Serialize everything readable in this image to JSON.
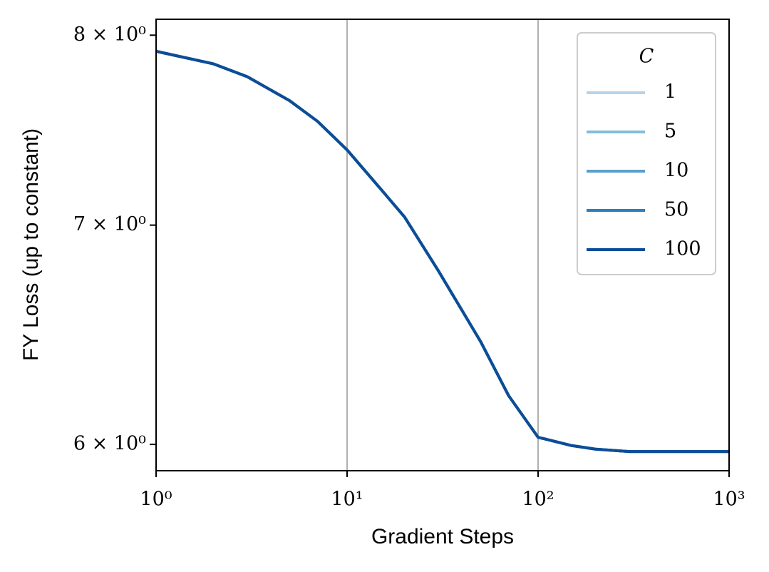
{
  "chart_data": {
    "type": "line",
    "xlabel": "Gradient Steps",
    "ylabel": "FY Loss (up to constant)",
    "xscale": "log",
    "yscale": "log",
    "xlim": [
      1,
      1000
    ],
    "ylim": [
      5.89,
      8.09
    ],
    "xticks": [
      {
        "value": 1,
        "label": "10⁰"
      },
      {
        "value": 10,
        "label": "10¹"
      },
      {
        "value": 100,
        "label": "10²"
      },
      {
        "value": 1000,
        "label": "10³"
      }
    ],
    "yticks": [
      {
        "value": 6,
        "label": "6 × 10⁰"
      },
      {
        "value": 7,
        "label": "7 × 10⁰"
      },
      {
        "value": 8,
        "label": "8 × 10⁰"
      }
    ],
    "grid": "x",
    "legend_title": "C",
    "legend_position": "upper right",
    "x": [
      1,
      2,
      3,
      5,
      7,
      10,
      15,
      20,
      30,
      50,
      70,
      100,
      150,
      200,
      300,
      500,
      1000
    ],
    "series": [
      {
        "name": "1",
        "color": "#b7d4ea",
        "values": [
          7.91,
          7.84,
          7.77,
          7.64,
          7.53,
          7.38,
          7.18,
          7.04,
          6.78,
          6.45,
          6.21,
          6.03,
          5.995,
          5.98,
          5.97,
          5.97,
          5.97
        ]
      },
      {
        "name": "5",
        "color": "#84bcdb",
        "values": [
          7.91,
          7.84,
          7.77,
          7.64,
          7.53,
          7.38,
          7.18,
          7.04,
          6.78,
          6.45,
          6.21,
          6.03,
          5.995,
          5.98,
          5.97,
          5.97,
          5.97
        ]
      },
      {
        "name": "10",
        "color": "#5a9fcc",
        "values": [
          7.91,
          7.84,
          7.77,
          7.64,
          7.53,
          7.38,
          7.18,
          7.04,
          6.78,
          6.45,
          6.21,
          6.03,
          5.995,
          5.98,
          5.97,
          5.97,
          5.97
        ]
      },
      {
        "name": "50",
        "color": "#2f7ebc",
        "values": [
          7.91,
          7.84,
          7.77,
          7.64,
          7.53,
          7.38,
          7.18,
          7.04,
          6.78,
          6.45,
          6.21,
          6.03,
          5.995,
          5.98,
          5.97,
          5.97,
          5.97
        ]
      },
      {
        "name": "100",
        "color": "#0c4d96",
        "values": [
          7.91,
          7.84,
          7.77,
          7.64,
          7.53,
          7.38,
          7.18,
          7.04,
          6.78,
          6.45,
          6.21,
          6.03,
          5.995,
          5.98,
          5.97,
          5.97,
          5.97
        ]
      }
    ]
  }
}
